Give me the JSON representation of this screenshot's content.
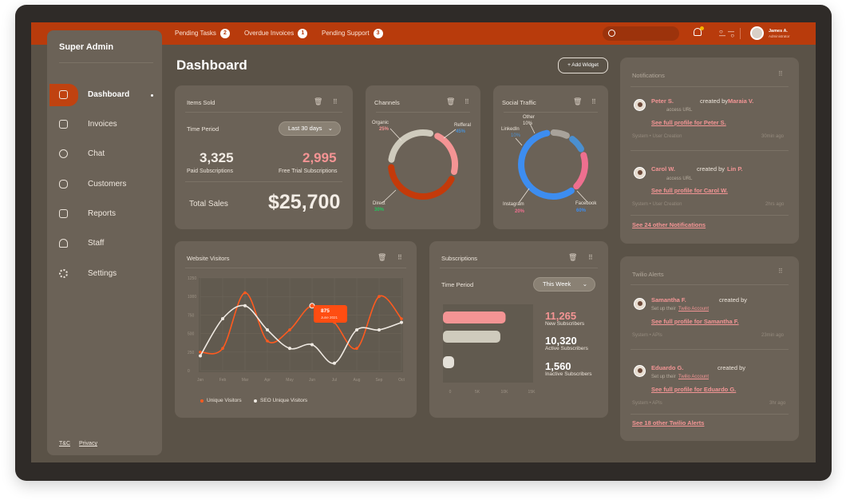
{
  "topbar": {
    "items": [
      {
        "label": "Pending Tasks",
        "count": "2"
      },
      {
        "label": "Overdue Invoices",
        "count": "1"
      },
      {
        "label": "Pending Support",
        "count": "3"
      }
    ],
    "user_name": "James A.",
    "user_role": "Administrator"
  },
  "sidebar": {
    "title": "Super Admin",
    "items": [
      {
        "label": "Dashboard",
        "icon": "grid-icon",
        "active": true
      },
      {
        "label": "Invoices",
        "icon": "folder-icon"
      },
      {
        "label": "Chat",
        "icon": "chat-icon"
      },
      {
        "label": "Customers",
        "icon": "customers-icon"
      },
      {
        "label": "Reports",
        "icon": "reports-icon"
      },
      {
        "label": "Staff",
        "icon": "staff-icon"
      },
      {
        "label": "Settings",
        "icon": "gear-icon"
      }
    ],
    "footer": {
      "tc": "T&C",
      "privacy": "Privacy"
    }
  },
  "main": {
    "title": "Dashboard",
    "add_widget": "+ Add Widget"
  },
  "items_sold": {
    "title": "Items Sold",
    "period_label": "Time Period",
    "period_value": "Last 30 days",
    "paid_value": "3,325",
    "paid_label": "Paid Subscriptions",
    "trial_value": "2,995",
    "trial_label": "Free Trial Subscriptions",
    "total_label": "Total Sales",
    "total_value": "$25,700"
  },
  "channels": {
    "title": "Channels",
    "segments": [
      {
        "name": "Organic",
        "pct": "25%",
        "value": 25,
        "color": "#f49494"
      },
      {
        "name": "Refferal",
        "pct": "45%",
        "value": 45,
        "color": "#c43a0a"
      },
      {
        "name": "Direct",
        "pct": "30%",
        "value": 30,
        "color": "#cfcbbd"
      }
    ]
  },
  "social": {
    "title": "Social Traffic",
    "segments": [
      {
        "name": "Other",
        "pct": "10%",
        "value": 10,
        "color": "#a8a29a"
      },
      {
        "name": "LinkedIn",
        "pct": "10%",
        "value": 10,
        "color": "#4a8fd0"
      },
      {
        "name": "Instagram",
        "pct": "20%",
        "value": 20,
        "color": "#ee6f8f"
      },
      {
        "name": "Facebook",
        "pct": "60%",
        "value": 60,
        "color": "#3d8df0"
      }
    ]
  },
  "visitors": {
    "title": "Website Visitors",
    "tooltip_value": "875",
    "tooltip_date": "June 2021",
    "legend_unique": "Unique Visitors",
    "legend_seo": "SEO Unique Visitors"
  },
  "chart_data": {
    "type": "line",
    "categories": [
      "Jan",
      "Feb",
      "Mar",
      "Apr",
      "May",
      "Jun",
      "Jul",
      "Aug",
      "Sep",
      "Oct"
    ],
    "yticks": [
      "0",
      "250",
      "500",
      "750",
      "1000",
      "1250"
    ],
    "ylim": [
      0,
      1250
    ],
    "series": [
      {
        "name": "Unique Visitors",
        "color": "#ff5a1f",
        "values": [
          250,
          300,
          1050,
          400,
          550,
          875,
          650,
          300,
          1000,
          700
        ]
      },
      {
        "name": "SEO Unique Visitors",
        "color": "#efe9e2",
        "values": [
          200,
          700,
          875,
          550,
          300,
          350,
          100,
          550,
          550,
          650
        ]
      }
    ]
  },
  "subscriptions": {
    "title": "Subscriptions",
    "period_label": "Time Period",
    "period_value": "This Week",
    "xticks": [
      "0",
      "5K",
      "10K",
      "15K"
    ],
    "bars": [
      {
        "value": 11265,
        "color": "#f49494"
      },
      {
        "value": 10320,
        "color": "#cfcbbd"
      },
      {
        "value": 1560,
        "color": "#e4e0d8"
      }
    ],
    "stats": [
      {
        "value": "11,265",
        "label": "New Subscribers",
        "color": "#f49494"
      },
      {
        "value": "10,320",
        "label": "Active Subscribers",
        "color": "#ffffff"
      },
      {
        "value": "1,560",
        "label": "Inactive Subscribers",
        "color": "#ffffff"
      }
    ]
  },
  "notifications": {
    "title": "Notifications",
    "items": [
      {
        "name": "Peter S.",
        "action": "created by",
        "by": "Maraia V.",
        "sub": "access URL",
        "link": "See full profile for Peter S.",
        "meta": "System • User Creation",
        "time": "30min ago"
      },
      {
        "name": "Carol W.",
        "action": "created by",
        "by": "Lin P.",
        "sub": "access URL",
        "link": "See full profile for Carol W.",
        "meta": "System • User Creation",
        "time": "2hrs ago"
      }
    ],
    "more": "See 24 other Notifications"
  },
  "twilio": {
    "title": "Twilio Alerts",
    "items": [
      {
        "name": "Samantha F.",
        "action": "created by",
        "sub_prefix": "Set up their",
        "sub_link": "Twilio Account",
        "link": "See full profile for Samantha F.",
        "meta": "System • APIs",
        "time": "23min ago"
      },
      {
        "name": "Eduardo G.",
        "action": "created by",
        "sub_prefix": "Set up their",
        "sub_link": "Twilio Account",
        "link": "See full profile for Eduardo G.",
        "meta": "System • APIs",
        "time": "3hr ago"
      }
    ],
    "more": "See 18 other Twilio Alerts"
  }
}
